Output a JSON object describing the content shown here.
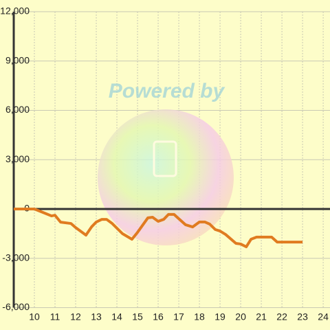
{
  "chart_data": {
    "type": "line",
    "watermark": "Powered by",
    "x": [
      9,
      10,
      10.5,
      10.83,
      11,
      11.27,
      11.77,
      12,
      12.5,
      12.77,
      13,
      13.27,
      13.5,
      13.77,
      14.27,
      14.73,
      15,
      15.5,
      15.73,
      16,
      16.27,
      16.5,
      16.77,
      17,
      17.33,
      17.67,
      18,
      18.27,
      18.5,
      18.77,
      19,
      19.27,
      19.77,
      20,
      20.27,
      20.5,
      20.77,
      21.5,
      21.77,
      23
    ],
    "series": [
      {
        "color": "#e07b20",
        "values": [
          0,
          0,
          -250,
          -420,
          -380,
          -800,
          -880,
          -1130,
          -1590,
          -1090,
          -790,
          -630,
          -630,
          -880,
          -1500,
          -1840,
          -1420,
          -540,
          -500,
          -750,
          -630,
          -330,
          -330,
          -590,
          -960,
          -1090,
          -790,
          -790,
          -920,
          -1250,
          -1340,
          -1550,
          -2090,
          -2130,
          -2300,
          -1840,
          -1710,
          -1710,
          -2010,
          -2010
        ]
      }
    ],
    "xlim": [
      9,
      24.33
    ],
    "xticks": [
      10,
      11,
      12,
      13,
      14,
      15,
      16,
      17,
      18,
      19,
      20,
      21,
      22,
      23,
      24
    ],
    "ylim": [
      -6000,
      12000
    ],
    "yticks": [
      {
        "value": -6000,
        "label": "-6,000"
      },
      {
        "value": -3000,
        "label": "-3,000"
      },
      0,
      {
        "value": 3000,
        "label": "3,000"
      },
      {
        "value": 6000,
        "label": "6,000"
      },
      {
        "value": 9000,
        "label": "9,000"
      },
      {
        "value": 12000,
        "label": "12,000"
      }
    ],
    "grid": true
  }
}
